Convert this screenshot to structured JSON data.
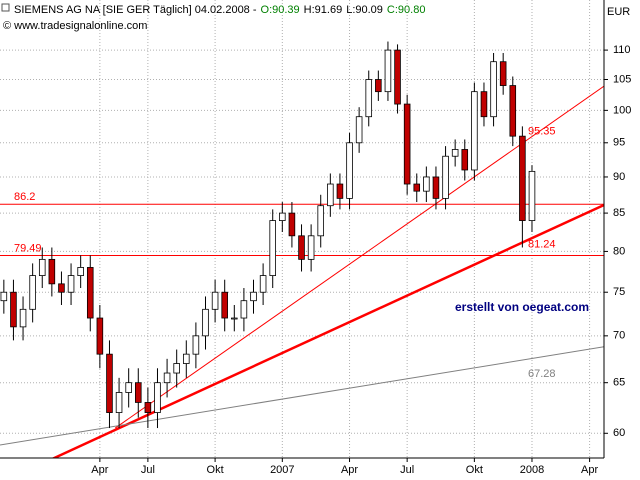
{
  "chart_data": {
    "type": "candlestick",
    "title": "SIEMENS AG NA [SIE GER  Täglich] 04.02.2008 -",
    "ohlc_labels": [
      "O:90.39",
      "H:91.69",
      "L:90.09",
      "C:90.80"
    ],
    "ohlc_label_colors": [
      "#008000",
      "#000000",
      "#000000",
      "#008000"
    ],
    "source": "© www.tradesignalonline.com",
    "y_unit": "EUR",
    "annotation": "erstellt von oegeat.com",
    "log_scale": true,
    "grid": true,
    "up_color": "#ffffff",
    "down_color": "#c00000",
    "categories": [
      null,
      null,
      null,
      null,
      null,
      null,
      null,
      null,
      null,
      null,
      "Apr",
      null,
      null,
      null,
      null,
      "Jul",
      null,
      null,
      null,
      null,
      null,
      null,
      "Okt",
      null,
      null,
      null,
      null,
      null,
      null,
      "2007",
      null,
      null,
      null,
      null,
      null,
      null,
      "Apr",
      null,
      null,
      null,
      null,
      null,
      "Jul",
      null,
      null,
      null,
      null,
      null,
      null,
      "Okt",
      null,
      null,
      null,
      null,
      null,
      "2008",
      null,
      null,
      null,
      null,
      null,
      "Apr",
      null
    ],
    "open": [
      74,
      75,
      71,
      73,
      77,
      79,
      76,
      75,
      77,
      78,
      72,
      68,
      62,
      64,
      65,
      63,
      62,
      65,
      66,
      67,
      68,
      70,
      73,
      75,
      72,
      72,
      74,
      75,
      77,
      84,
      85,
      82,
      79,
      82,
      86,
      89,
      87,
      95,
      99,
      105,
      103,
      110,
      101,
      89,
      88,
      90,
      87,
      93,
      94,
      91,
      103,
      99,
      108,
      104,
      96,
      84,
      null,
      null,
      null,
      null,
      null,
      null,
      null
    ],
    "high": [
      76.5,
      76.5,
      74.5,
      78.5,
      80.5,
      80.5,
      77.5,
      78.5,
      79.5,
      79.5,
      73.5,
      69.5,
      65.5,
      66.5,
      66.5,
      64.5,
      66.5,
      67.5,
      68.5,
      69.5,
      71.5,
      74.5,
      76.5,
      76.5,
      73.5,
      75.5,
      76.5,
      78.5,
      85.5,
      86.5,
      86.5,
      83.5,
      83.5,
      87.5,
      90.5,
      90.5,
      96.5,
      100.5,
      106.5,
      106.5,
      111.5,
      111,
      102.5,
      90.5,
      91.5,
      91.5,
      94.5,
      95.5,
      95.5,
      104.5,
      104.5,
      109.5,
      109.5,
      105.5,
      97.5,
      91.69,
      null,
      null,
      null,
      null,
      null,
      null,
      null
    ],
    "low": [
      72.5,
      69.5,
      69.5,
      71.5,
      75.5,
      74.5,
      73.5,
      73.5,
      75.5,
      70.5,
      66.5,
      60.5,
      60.5,
      62.5,
      61.5,
      60.5,
      60.5,
      63.5,
      64.5,
      65.5,
      66.5,
      68.5,
      71.5,
      70.5,
      70.5,
      70.5,
      72.5,
      73.5,
      75.5,
      82.5,
      80.5,
      77.5,
      77.5,
      80.5,
      84.5,
      85.5,
      85.5,
      93.5,
      97.5,
      101.5,
      101.5,
      99.5,
      87.5,
      86.5,
      86.5,
      85.5,
      85.5,
      91.5,
      89.5,
      89.5,
      97.5,
      97.5,
      102.5,
      94.5,
      80.5,
      82.5,
      null,
      null,
      null,
      null,
      null,
      null,
      null
    ],
    "close": [
      75,
      71,
      73,
      77,
      79,
      76,
      75,
      77,
      78,
      72,
      68,
      62,
      64,
      65,
      63,
      62,
      65,
      66,
      67,
      68,
      70,
      73,
      75,
      72,
      72,
      74,
      75,
      77,
      84,
      85,
      82,
      79,
      82,
      86,
      89,
      87,
      95,
      99,
      105,
      103,
      110,
      101,
      89,
      88,
      90,
      87,
      93,
      94,
      91,
      103,
      99,
      108,
      104,
      96,
      84,
      90.8,
      null,
      null,
      null,
      null,
      null,
      null,
      null
    ],
    "xlim": [
      -0.4,
      62.5
    ],
    "ylim": [
      57.7,
      115
    ],
    "yticks": [
      60,
      65,
      70,
      75,
      80,
      85,
      90,
      95,
      100,
      105,
      110
    ],
    "hlines": [
      86.2,
      79.49
    ],
    "hline_color": "#ff0000",
    "trendlines": [
      {
        "x": [
          11.6,
          62.5
        ],
        "y": [
          60.5,
          103.9
        ],
        "color": "#ff0000",
        "width": 1,
        "value": 95.35
      },
      {
        "x": [
          5,
          62.5
        ],
        "y": [
          57.6,
          86.1
        ],
        "color": "#ff0000",
        "width": 2.5,
        "value": 81.24
      },
      {
        "x": [
          -0.4,
          62.5
        ],
        "y": [
          58.9,
          68.8
        ],
        "color": "#808080",
        "width": 1,
        "value": 67.28
      }
    ]
  }
}
